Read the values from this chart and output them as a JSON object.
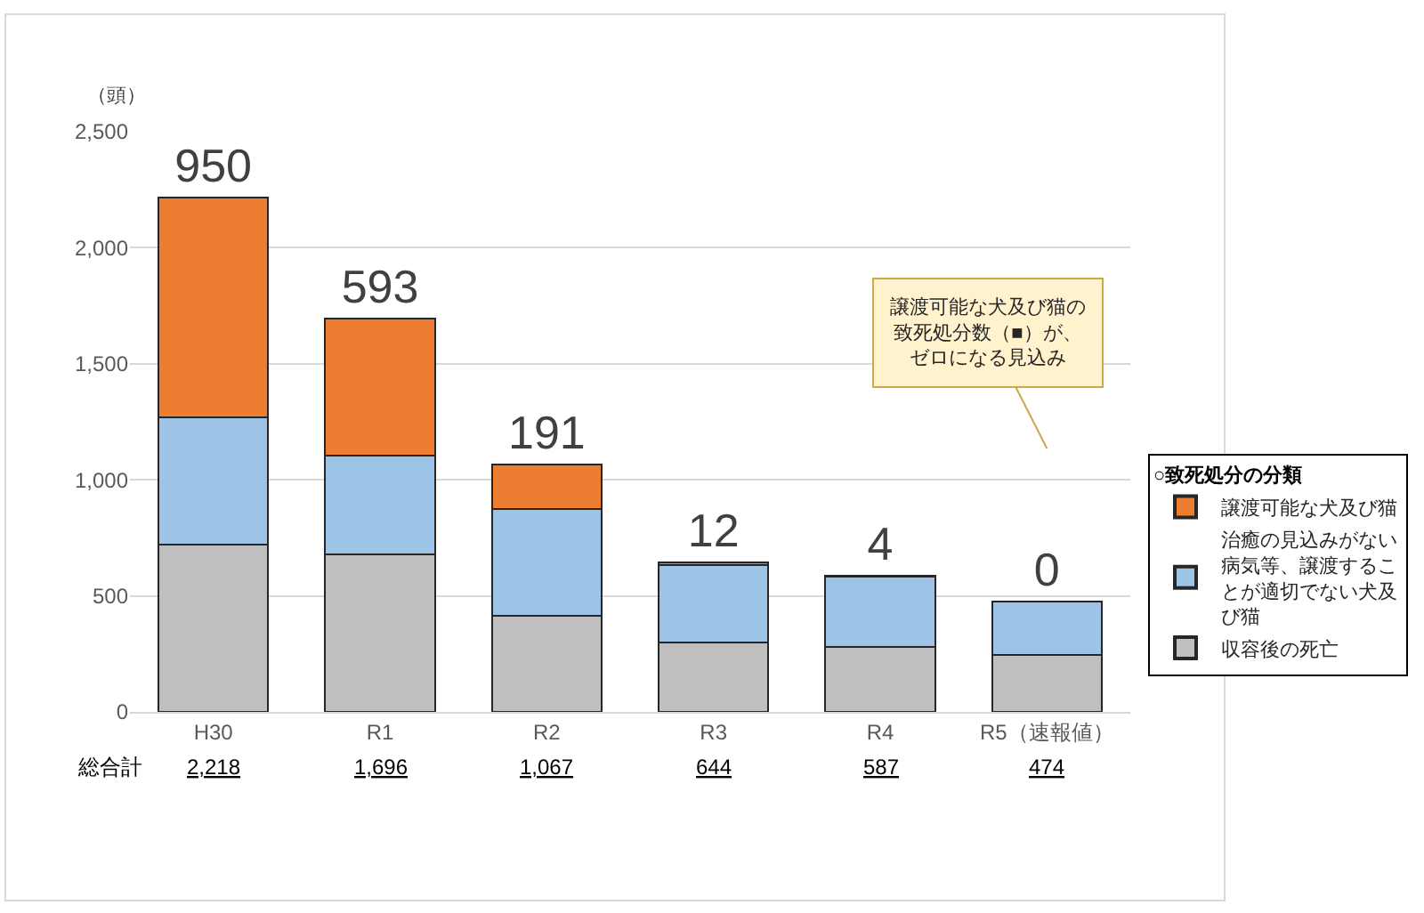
{
  "chart_data": {
    "type": "bar",
    "stacked": true,
    "ylabel": "（頭）",
    "legend_title": "○致死処分の分類",
    "legend": "right",
    "grid": "y",
    "categories": [
      "H30",
      "R1",
      "R2",
      "R3",
      "R4",
      "R5（速報値）"
    ],
    "series": [
      {
        "name": "収容後の死亡",
        "color": "#bfbfbf",
        "values": [
          720,
          680,
          415,
          300,
          280,
          245
        ]
      },
      {
        "name": "治癒の見込みがない病気等、譲渡することが適切でない犬及び猫",
        "color": "#9dc3e6",
        "values": [
          548,
          423,
          461,
          332,
          303,
          229
        ]
      },
      {
        "name": "譲渡可能な犬及び猫",
        "color": "#ed7d31",
        "values": [
          950,
          593,
          191,
          12,
          4,
          0
        ],
        "value_labels": [
          "950",
          "593",
          "191",
          "12",
          "4",
          "0"
        ]
      }
    ],
    "totals": [
      "2,218",
      "1,696",
      "1,067",
      "644",
      "587",
      "474"
    ],
    "ylim": [
      0,
      2500
    ],
    "yticks": [
      0,
      500,
      {
        "value": 1000,
        "label": "1,000"
      },
      {
        "value": 1500,
        "label": "1,500"
      },
      {
        "value": 2000,
        "label": "2,000"
      },
      {
        "value": 2500,
        "label": "2,500"
      }
    ],
    "annotations": [
      "総合計",
      "譲渡可能な犬及び猫の致死処分数（■）が、ゼロになる見込み"
    ]
  }
}
